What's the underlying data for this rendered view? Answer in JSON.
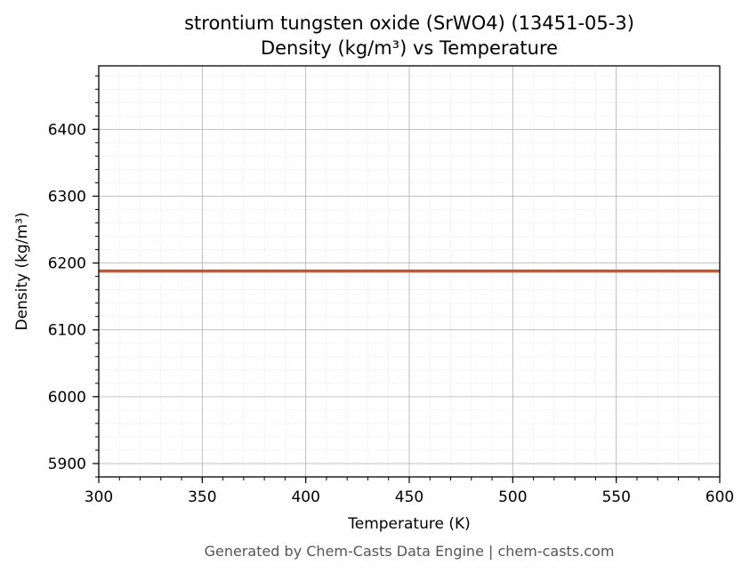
{
  "chart_data": {
    "type": "line",
    "title": "strontium tungsten oxide (SrWO4) (13451-05-3)",
    "subtitle": "Density (kg/m³) vs Temperature",
    "xlabel": "Temperature (K)",
    "ylabel": "Density (kg/m³)",
    "xlim": [
      300,
      600
    ],
    "ylim": [
      5880,
      6495
    ],
    "x_ticks": [
      300,
      350,
      400,
      450,
      500,
      550,
      600
    ],
    "y_ticks": [
      5900,
      6000,
      6100,
      6200,
      6300,
      6400
    ],
    "grid": true,
    "minor_grid": true,
    "series": [
      {
        "color": "#c8552b",
        "x": [
          300,
          600
        ],
        "y": [
          6188,
          6188
        ]
      }
    ]
  },
  "footer": "Generated by Chem-Casts Data Engine | chem-casts.com"
}
